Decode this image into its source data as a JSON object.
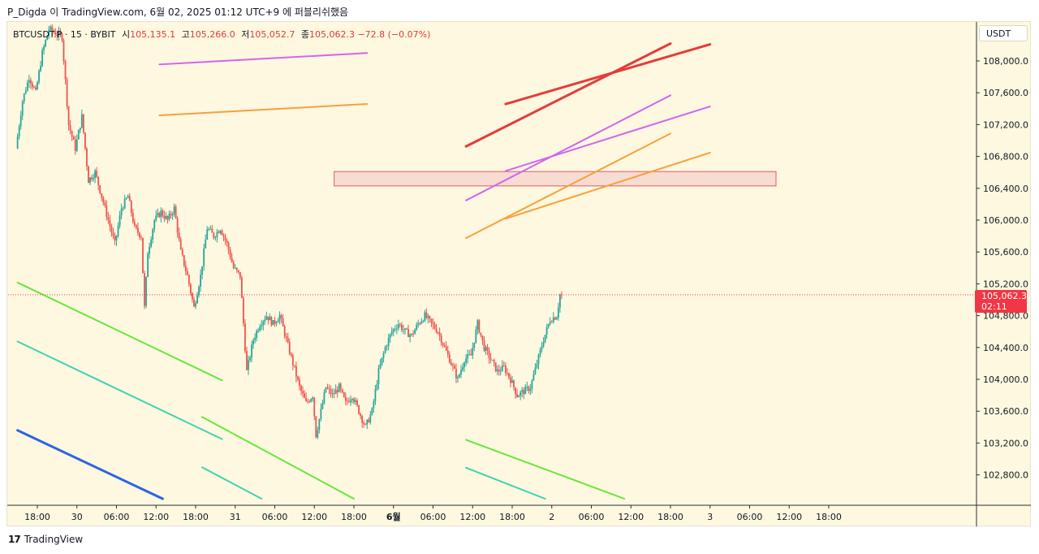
{
  "header": {
    "text": "P_Digda 이 TradingView.com, 6월 02, 2025 01:12 UTC+9 에 퍼블리쉬했음"
  },
  "legend": {
    "symbol": "BTCUSDT.P · 15 · BYBIT",
    "open_label": "시",
    "open": "105,135.1",
    "high_label": "고",
    "high": "105,266.0",
    "low_label": "저",
    "low": "105,052.7",
    "close_label": "종",
    "close": "105,062.3",
    "change": "−72.8 (−0.07%)"
  },
  "currency": "USDT",
  "price_badge": {
    "price": "105,062.3",
    "countdown": "02:11"
  },
  "footer": {
    "brand_mark": "17",
    "brand": "TradingView"
  },
  "colors": {
    "background": "#fdf8df",
    "up": "#26a69a",
    "down": "#ef5350",
    "badge": "#f23645"
  },
  "chart_data": {
    "type": "candlestick",
    "y_unit": "USDT",
    "ylim": [
      102500,
      108350
    ],
    "yticks": [
      108000,
      107600,
      107200,
      106800,
      106400,
      106000,
      105600,
      105200,
      104800,
      104400,
      104000,
      103600,
      103200,
      102800
    ],
    "ytick_labels": [
      "108,000.0",
      "107,600.0",
      "107,200.0",
      "106,800.0",
      "106,400.0",
      "106,000.0",
      "105,600.0",
      "105,200.0",
      "104,800.0",
      "104,400.0",
      "104,000.0",
      "103,600.0",
      "103,200.0",
      "102,800.0"
    ],
    "x_hours_range": [
      -1,
      62
    ],
    "xticks": [
      {
        "hour": 2,
        "label": "18:00"
      },
      {
        "hour": 8,
        "label": "30"
      },
      {
        "hour": 14,
        "label": "06:00"
      },
      {
        "hour": 20,
        "label": "12:00"
      },
      {
        "hour": 26,
        "label": "18:00"
      },
      {
        "hour": 32,
        "label": "31"
      },
      {
        "hour": 38,
        "label": "06:00"
      },
      {
        "hour": 44,
        "label": "12:00"
      },
      {
        "hour": 50,
        "label": "18:00"
      },
      {
        "hour": 56,
        "label": "6월",
        "bold": true
      },
      {
        "hour": 62,
        "label": "06:00"
      },
      {
        "hour": 68,
        "label": "12:00"
      },
      {
        "hour": 74,
        "label": "18:00"
      },
      {
        "hour": 80,
        "label": "2"
      },
      {
        "hour": 86,
        "label": "06:00"
      },
      {
        "hour": 92,
        "label": "12:00"
      },
      {
        "hour": 98,
        "label": "18:00"
      },
      {
        "hour": 104,
        "label": "3"
      },
      {
        "hour": 110,
        "label": "06:00"
      },
      {
        "hour": 116,
        "label": "12:00"
      },
      {
        "hour": 122,
        "label": "18:00"
      }
    ],
    "last_price": 105062.3,
    "price_path": [
      [
        -1,
        106900
      ],
      [
        0,
        107500
      ],
      [
        1,
        107800
      ],
      [
        2,
        107600
      ],
      [
        3,
        108100
      ],
      [
        4,
        108400
      ],
      [
        6,
        108300
      ],
      [
        7,
        107200
      ],
      [
        8,
        106900
      ],
      [
        9,
        107300
      ],
      [
        10,
        106500
      ],
      [
        11,
        106600
      ],
      [
        12,
        106300
      ],
      [
        13,
        106000
      ],
      [
        14,
        105700
      ],
      [
        15,
        106150
      ],
      [
        16,
        106300
      ],
      [
        17,
        105900
      ],
      [
        18,
        105800
      ],
      [
        18.5,
        104900
      ],
      [
        19,
        105600
      ],
      [
        20,
        106000
      ],
      [
        21,
        106100
      ],
      [
        22,
        106000
      ],
      [
        23,
        106150
      ],
      [
        24,
        105600
      ],
      [
        25,
        105300
      ],
      [
        26,
        104900
      ],
      [
        27,
        105300
      ],
      [
        28,
        105900
      ],
      [
        29,
        105800
      ],
      [
        30,
        105900
      ],
      [
        31,
        105700
      ],
      [
        32,
        105400
      ],
      [
        33,
        105300
      ],
      [
        34,
        104100
      ],
      [
        35,
        104500
      ],
      [
        36,
        104700
      ],
      [
        37,
        104800
      ],
      [
        38,
        104700
      ],
      [
        39,
        104800
      ],
      [
        40,
        104500
      ],
      [
        41,
        104200
      ],
      [
        42,
        103900
      ],
      [
        43,
        103700
      ],
      [
        44,
        103800
      ],
      [
        44.5,
        103300
      ],
      [
        45,
        103500
      ],
      [
        46,
        103900
      ],
      [
        47,
        103800
      ],
      [
        48,
        103900
      ],
      [
        49,
        103700
      ],
      [
        50,
        103800
      ],
      [
        51,
        103600
      ],
      [
        52,
        103400
      ],
      [
        53,
        103600
      ],
      [
        54,
        104100
      ],
      [
        55,
        104400
      ],
      [
        56,
        104600
      ],
      [
        57,
        104700
      ],
      [
        58,
        104600
      ],
      [
        59,
        104550
      ],
      [
        60,
        104700
      ],
      [
        61,
        104800
      ],
      [
        62,
        104700
      ],
      [
        63,
        104600
      ],
      [
        64,
        104400
      ],
      [
        65,
        104200
      ],
      [
        66,
        104000
      ],
      [
        67,
        104250
      ],
      [
        68,
        104300
      ],
      [
        69,
        104700
      ],
      [
        70,
        104400
      ],
      [
        71,
        104250
      ],
      [
        72,
        104100
      ],
      [
        73,
        104150
      ],
      [
        74,
        104000
      ],
      [
        75,
        103800
      ],
      [
        76,
        103850
      ],
      [
        77,
        103900
      ],
      [
        78,
        104200
      ],
      [
        79,
        104500
      ],
      [
        80,
        104750
      ],
      [
        81,
        104800
      ],
      [
        81.5,
        105062.3
      ]
    ],
    "drawings": [
      {
        "color": "#d264f0",
        "width": 2,
        "x": [
          20.5,
          52
        ],
        "y": [
          107956,
          108099
        ]
      },
      {
        "color": "#f7a03c",
        "width": 2,
        "x": [
          20.5,
          52
        ],
        "y": [
          107316,
          107459
        ]
      },
      {
        "color": "#e63b3b",
        "width": 3,
        "x": [
          67,
          98
        ],
        "y": [
          106926,
          108218
        ]
      },
      {
        "color": "#e63b3b",
        "width": 3,
        "x": [
          73,
          104
        ],
        "y": [
          107458,
          108208
        ]
      },
      {
        "color": "#d264f0",
        "width": 2,
        "x": [
          67,
          98
        ],
        "y": [
          106248,
          107568
        ]
      },
      {
        "color": "#d264f0",
        "width": 2,
        "x": [
          73,
          104
        ],
        "y": [
          106618,
          107428
        ]
      },
      {
        "color": "#f7a03c",
        "width": 2,
        "x": [
          67,
          98
        ],
        "y": [
          105774,
          107088
        ]
      },
      {
        "color": "#f7a03c",
        "width": 2,
        "x": [
          73,
          104
        ],
        "y": [
          106018,
          106848
        ]
      },
      {
        "color": "#66e83c",
        "width": 2,
        "x": [
          -1,
          30
        ],
        "y": [
          105216,
          103988
        ]
      },
      {
        "color": "#3fd2b4",
        "width": 2,
        "x": [
          -1,
          30
        ],
        "y": [
          104476,
          103250
        ]
      },
      {
        "color": "#2f62e8",
        "width": 3,
        "x": [
          -1,
          21
        ],
        "y": [
          103360,
          102500
        ]
      },
      {
        "color": "#66e83c",
        "width": 2,
        "x": [
          27,
          50
        ],
        "y": [
          103527,
          102500
        ]
      },
      {
        "color": "#3fd2b4",
        "width": 2,
        "x": [
          27,
          36
        ],
        "y": [
          102895,
          102500
        ]
      },
      {
        "color": "#66e83c",
        "width": 2,
        "x": [
          67,
          91
        ],
        "y": [
          103240,
          102500
        ]
      },
      {
        "color": "#3fd2b4",
        "width": 2,
        "x": [
          67,
          79
        ],
        "y": [
          102890,
          102500
        ]
      }
    ],
    "zone": {
      "x": [
        47,
        114
      ],
      "y": [
        106610,
        106430
      ],
      "fill": "#f7dcd2",
      "stroke": "#e05a6a"
    }
  }
}
